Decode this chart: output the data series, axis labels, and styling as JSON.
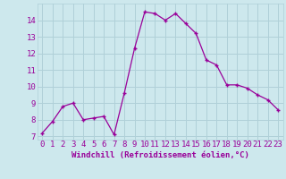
{
  "x": [
    0,
    1,
    2,
    3,
    4,
    5,
    6,
    7,
    8,
    9,
    10,
    11,
    12,
    13,
    14,
    15,
    16,
    17,
    18,
    19,
    20,
    21,
    22,
    23
  ],
  "y": [
    7.2,
    7.9,
    8.8,
    9.0,
    8.0,
    8.1,
    8.2,
    7.1,
    9.6,
    12.3,
    14.5,
    14.4,
    14.0,
    14.4,
    13.8,
    13.2,
    11.6,
    11.3,
    10.1,
    10.1,
    9.9,
    9.5,
    9.2,
    8.6
  ],
  "line_color": "#990099",
  "marker": "+",
  "marker_size": 3,
  "xlim": [
    -0.5,
    23.5
  ],
  "ylim": [
    6.8,
    15.0
  ],
  "xticks": [
    0,
    1,
    2,
    3,
    4,
    5,
    6,
    7,
    8,
    9,
    10,
    11,
    12,
    13,
    14,
    15,
    16,
    17,
    18,
    19,
    20,
    21,
    22,
    23
  ],
  "yticks": [
    7,
    8,
    9,
    10,
    11,
    12,
    13,
    14
  ],
  "bg_color": "#cde8ed",
  "grid_color": "#b0d0d8",
  "line_color2": "#990099",
  "label_color": "#990099",
  "tick_color": "#990099",
  "xlabel": "Windchill (Refroidissement éolien,°C)",
  "xlabel_fontsize": 6.5,
  "tick_fontsize": 6.5
}
